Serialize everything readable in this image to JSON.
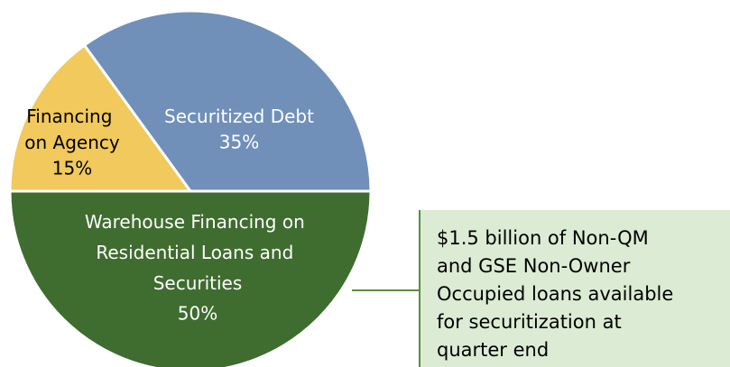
{
  "chart_data": {
    "type": "pie",
    "categories": [
      "Securitized Debt",
      "Financing on Agency",
      "Warehouse Financing on Residential Loans and Securities"
    ],
    "values": [
      35,
      15,
      50
    ],
    "value_labels": [
      "35%",
      "15%",
      "50%"
    ],
    "colors": [
      "#7090b9",
      "#f1c95c",
      "#3f6c2f"
    ],
    "annotation": "$1.5 billion of Non-QM and GSE Non-Owner Occupied loans available for securitization at quarter end"
  }
}
